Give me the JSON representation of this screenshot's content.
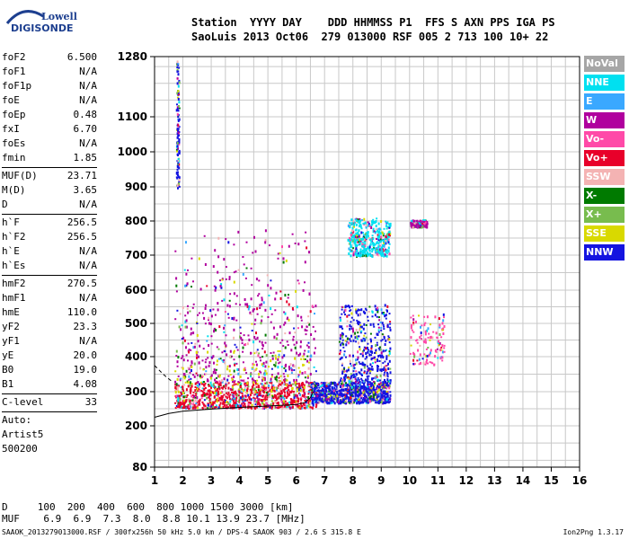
{
  "logo": {
    "top": "Lowell",
    "bottom": "DIGISONDE"
  },
  "header": {
    "labels": "Station  YYYY DAY    DDD HHMMSS P1  FFS S AXN PPS IGA PS",
    "values": "SaoLuis 2013 Oct06  279 013000 RSF 005 2 713 100 10+ 22"
  },
  "params": {
    "group1": [
      {
        "name": "foF2",
        "value": "6.500"
      },
      {
        "name": "foF1",
        "value": "N/A"
      },
      {
        "name": "foF1p",
        "value": "N/A"
      },
      {
        "name": "foE",
        "value": "N/A"
      },
      {
        "name": "foEp",
        "value": "0.48"
      },
      {
        "name": "fxI",
        "value": "6.70"
      },
      {
        "name": "foEs",
        "value": "N/A"
      },
      {
        "name": "fmin",
        "value": "1.85"
      }
    ],
    "group2": [
      {
        "name": "MUF(D)",
        "value": "23.71"
      },
      {
        "name": "M(D)",
        "value": "3.65"
      },
      {
        "name": "D",
        "value": "N/A"
      }
    ],
    "group3": [
      {
        "name": "h`F",
        "value": "256.5"
      },
      {
        "name": "h`F2",
        "value": "256.5"
      },
      {
        "name": "h`E",
        "value": "N/A"
      },
      {
        "name": "h`Es",
        "value": "N/A"
      }
    ],
    "group4": [
      {
        "name": "hmF2",
        "value": "270.5"
      },
      {
        "name": "hmF1",
        "value": "N/A"
      },
      {
        "name": "hmE",
        "value": "110.0"
      },
      {
        "name": "yF2",
        "value": "23.3"
      },
      {
        "name": "yF1",
        "value": "N/A"
      },
      {
        "name": "yE",
        "value": "20.0"
      },
      {
        "name": "B0",
        "value": "19.0"
      },
      {
        "name": "B1",
        "value": "4.08"
      }
    ],
    "clevel": {
      "name": "C-level",
      "value": "33"
    },
    "auto": [
      "Auto:",
      "Artist5",
      "500200"
    ]
  },
  "legend": [
    {
      "label": "NoVal",
      "color": "#a6a6a6"
    },
    {
      "label": "NNE",
      "color": "#00e0f0"
    },
    {
      "label": "E",
      "color": "#3aa8ff"
    },
    {
      "label": "W",
      "color": "#b0009e"
    },
    {
      "label": "Vo-",
      "color": "#ff4aa8"
    },
    {
      "label": "Vo+",
      "color": "#e8002a"
    },
    {
      "label": "SSW",
      "color": "#f4b3b3"
    },
    {
      "label": "X-",
      "color": "#007a00"
    },
    {
      "label": "X+",
      "color": "#78bc4e"
    },
    {
      "label": "SSE",
      "color": "#d9d900"
    },
    {
      "label": "NNW",
      "color": "#1414e0"
    }
  ],
  "footer": {
    "d_row": "D     100  200  400  600  800 1000 1500 3000 [km]",
    "muf_row": "MUF    6.9  6.9  7.3  8.0  8.8 10.1 13.9 23.7 [MHz]",
    "file_line": "SAAOK_2013279013000.RSF / 300fx256h 50 kHz 5.0 km / DPS-4 SAAOK 903 / 2.6 S 315.8 E",
    "version": "Ion2Png 1.3.17"
  },
  "chart_data": {
    "type": "scatter",
    "title": "",
    "xlabel": "",
    "ylabel": "",
    "xlim": [
      1,
      16
    ],
    "ylim": [
      80,
      1280
    ],
    "y_scale": "nonlinear (ionogram virtual height)",
    "x_ticks": [
      "1",
      "2",
      "3",
      "4",
      "5",
      "6",
      "7",
      "8",
      "9",
      "10",
      "11",
      "12",
      "13",
      "14",
      "15",
      "16"
    ],
    "y_tick_values": [
      80,
      200,
      300,
      400,
      500,
      600,
      700,
      800,
      900,
      1000,
      1100,
      1280
    ],
    "y_ticks": [
      "80",
      "200",
      "300",
      "400",
      "500",
      "600",
      "700",
      "800",
      "900",
      "1000",
      "1100",
      "1280"
    ],
    "grid": true,
    "legend_position": "right",
    "trace_curve": {
      "name": "",
      "x": [
        1.0,
        1.5,
        2.0,
        3.0,
        4.0,
        5.0,
        6.0,
        6.3,
        6.5,
        6.6
      ],
      "y": [
        225,
        236,
        243,
        249,
        254,
        258,
        262,
        268,
        282,
        300
      ]
    },
    "dashed_curve": {
      "name": "",
      "x": [
        1.0,
        1.3,
        1.6
      ],
      "y": [
        375,
        350,
        330
      ]
    },
    "echo_regions": [
      {
        "x": [
          1.7,
          6.7
        ],
        "y": [
          255,
          330
        ],
        "color": "Vo+",
        "density": "high"
      },
      {
        "x": [
          1.7,
          6.7
        ],
        "y": [
          330,
          560
        ],
        "color": "W",
        "density": "medium"
      },
      {
        "x": [
          1.7,
          6.5
        ],
        "y": [
          560,
          780
        ],
        "color": "W",
        "density": "low"
      },
      {
        "x": [
          6.5,
          9.3
        ],
        "y": [
          270,
          330
        ],
        "color": "NNW",
        "density": "high"
      },
      {
        "x": [
          7.5,
          9.3
        ],
        "y": [
          330,
          560
        ],
        "color": "NNW",
        "density": "medium"
      },
      {
        "x": [
          7.8,
          9.3
        ],
        "y": [
          700,
          810
        ],
        "color": "NNE",
        "density": "medium"
      },
      {
        "x": [
          10.0,
          10.6
        ],
        "y": [
          785,
          805
        ],
        "color": "W",
        "density": "low"
      },
      {
        "x": [
          10.0,
          11.2
        ],
        "y": [
          380,
          530
        ],
        "color": "Vo-",
        "density": "low"
      },
      {
        "x": [
          1.7,
          6.5
        ],
        "y": [
          300,
          420
        ],
        "color": "SSE",
        "density": "low"
      },
      {
        "x": [
          1.75,
          1.85
        ],
        "y": [
          900,
          1280
        ],
        "color": "NNW",
        "density": "low"
      }
    ]
  }
}
